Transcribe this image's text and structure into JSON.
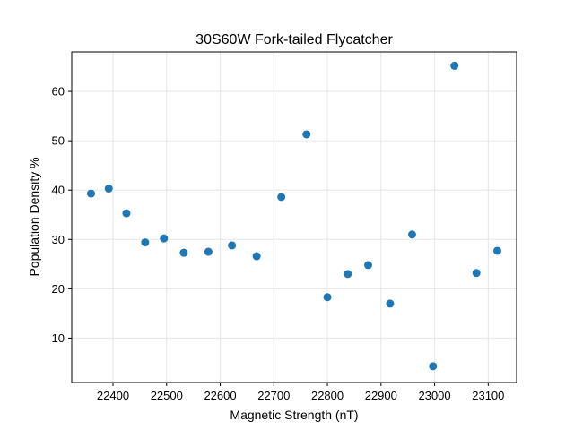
{
  "chart_data": {
    "type": "scatter",
    "title": "30S60W Fork-tailed Flycatcher",
    "xlabel": "Magnetic Strength (nT)",
    "ylabel": "Population Density %",
    "xlim": [
      22323,
      23153
    ],
    "ylim": [
      1,
      68
    ],
    "xticks": [
      22400,
      22500,
      22600,
      22700,
      22800,
      22900,
      23000,
      23100
    ],
    "yticks": [
      10,
      20,
      30,
      40,
      50,
      60
    ],
    "grid": true,
    "point_color": "#1f77b4",
    "points": [
      {
        "x": 22359,
        "y": 39.3
      },
      {
        "x": 22392,
        "y": 40.3
      },
      {
        "x": 22425,
        "y": 35.3
      },
      {
        "x": 22460,
        "y": 29.4
      },
      {
        "x": 22495,
        "y": 30.2
      },
      {
        "x": 22532,
        "y": 27.3
      },
      {
        "x": 22578,
        "y": 27.5
      },
      {
        "x": 22622,
        "y": 28.8
      },
      {
        "x": 22668,
        "y": 26.6
      },
      {
        "x": 22714,
        "y": 38.6
      },
      {
        "x": 22761,
        "y": 51.3
      },
      {
        "x": 22800,
        "y": 18.3
      },
      {
        "x": 22838,
        "y": 23.0
      },
      {
        "x": 22876,
        "y": 24.8
      },
      {
        "x": 22917,
        "y": 17.0
      },
      {
        "x": 22958,
        "y": 31.0
      },
      {
        "x": 22997,
        "y": 4.3
      },
      {
        "x": 23037,
        "y": 65.2
      },
      {
        "x": 23078,
        "y": 23.2
      },
      {
        "x": 23117,
        "y": 27.7
      }
    ]
  }
}
